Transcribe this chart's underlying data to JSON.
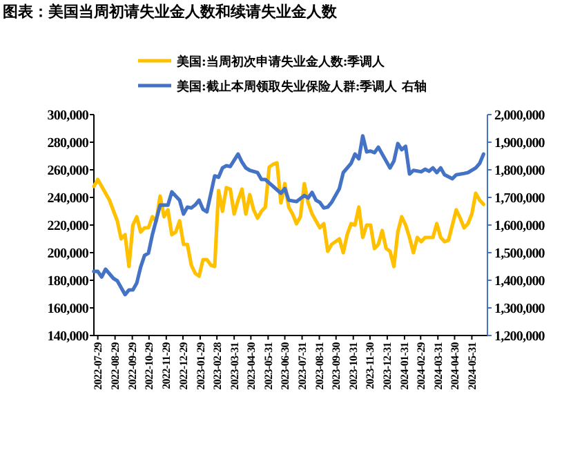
{
  "chart_data": {
    "type": "line",
    "title": "图表：美国当周初请失业金人数和续请失业金人数",
    "legend": "top",
    "xlim": [
      "2022-07-22",
      "2024-06-28"
    ],
    "xticks": [
      "2022-07-29",
      "2022-08-29",
      "2022-09-29",
      "2022-10-29",
      "2022-11-29",
      "2022-12-29",
      "2023-01-29",
      "2023-02-28",
      "2023-03-31",
      "2023-04-30",
      "2023-05-31",
      "2023-06-30",
      "2023-07-31",
      "2023-08-31",
      "2023-09-30",
      "2023-10-31",
      "2023-11-30",
      "2023-12-31",
      "2024-01-31",
      "2024-02-29",
      "2024-03-31",
      "2024-04-30",
      "2024-05-31"
    ],
    "ylim": [
      140000,
      300000
    ],
    "yticks": [
      {
        "value": 140000,
        "label": "140,000"
      },
      {
        "value": 160000,
        "label": "160,000"
      },
      {
        "value": 180000,
        "label": "180,000"
      },
      {
        "value": 200000,
        "label": "200,000"
      },
      {
        "value": 220000,
        "label": "220,000"
      },
      {
        "value": 240000,
        "label": "240,000"
      },
      {
        "value": 260000,
        "label": "260,000"
      },
      {
        "value": 280000,
        "label": "280,000"
      },
      {
        "value": 300000,
        "label": "300,000"
      }
    ],
    "y2lim": [
      1200000,
      2000000
    ],
    "y2ticks": [
      {
        "value": 1200000,
        "label": "1,200,000"
      },
      {
        "value": 1300000,
        "label": "1,300,000"
      },
      {
        "value": 1400000,
        "label": "1,400,000"
      },
      {
        "value": 1500000,
        "label": "1,500,000"
      },
      {
        "value": 1600000,
        "label": "1,600,000"
      },
      {
        "value": 1700000,
        "label": "1,700,000"
      },
      {
        "value": 1800000,
        "label": "1,800,000"
      },
      {
        "value": 1900000,
        "label": "1,900,000"
      },
      {
        "value": 2000000,
        "label": "2,000,000"
      }
    ],
    "series": [
      {
        "name": "美国:当周初次申请失业金人数:季调人",
        "color": "#ffc000",
        "x": [
          "2022-07-22",
          "2022-07-29",
          "2022-08-19",
          "2022-09-02",
          "2022-09-09",
          "2022-09-16",
          "2022-09-23",
          "2022-09-30",
          "2022-10-07",
          "2022-10-14",
          "2022-10-21",
          "2022-10-28",
          "2022-11-04",
          "2022-11-11",
          "2022-11-18",
          "2022-11-25",
          "2022-12-02",
          "2022-12-09",
          "2022-12-16",
          "2022-12-23",
          "2022-12-30",
          "2023-01-06",
          "2023-01-13",
          "2023-01-20",
          "2023-01-27",
          "2023-02-03",
          "2023-02-10",
          "2023-02-17",
          "2023-02-24",
          "2023-03-03",
          "2023-03-10",
          "2023-03-17",
          "2023-03-24",
          "2023-03-31",
          "2023-04-07",
          "2023-04-14",
          "2023-04-21",
          "2023-04-28",
          "2023-05-05",
          "2023-05-12",
          "2023-05-19",
          "2023-05-26",
          "2023-06-02",
          "2023-06-09",
          "2023-06-16",
          "2023-06-23",
          "2023-06-30",
          "2023-07-07",
          "2023-07-14",
          "2023-07-21",
          "2023-07-28",
          "2023-08-04",
          "2023-08-11",
          "2023-08-18",
          "2023-09-01",
          "2023-09-08",
          "2023-09-15",
          "2023-09-22",
          "2023-10-06",
          "2023-10-13",
          "2023-10-20",
          "2023-10-27",
          "2023-11-03",
          "2023-11-10",
          "2023-11-17",
          "2023-11-24",
          "2023-12-01",
          "2023-12-08",
          "2023-12-15",
          "2023-12-22",
          "2023-12-29",
          "2024-01-05",
          "2024-01-12",
          "2024-01-19",
          "2024-01-26",
          "2024-02-02",
          "2024-02-09",
          "2024-02-16",
          "2024-02-23",
          "2024-03-01",
          "2024-03-08",
          "2024-03-22",
          "2024-03-29",
          "2024-04-05",
          "2024-04-12",
          "2024-04-19",
          "2024-05-03",
          "2024-05-10",
          "2024-05-17",
          "2024-05-24",
          "2024-05-31",
          "2024-06-07",
          "2024-06-14",
          "2024-06-21"
        ],
        "values": [
          248000,
          253000,
          238000,
          223000,
          210000,
          213000,
          190000,
          220000,
          226000,
          215000,
          218000,
          218000,
          226000,
          223000,
          241000,
          226000,
          231000,
          213000,
          215000,
          223000,
          206000,
          206000,
          191000,
          185000,
          183000,
          195000,
          195000,
          191000,
          190000,
          245000,
          230000,
          247000,
          246000,
          228000,
          238000,
          246000,
          228000,
          242000,
          231000,
          225000,
          230000,
          233000,
          262000,
          264000,
          265000,
          236000,
          250000,
          233000,
          228000,
          221000,
          226000,
          250000,
          236000,
          228000,
          218000,
          221000,
          201000,
          206000,
          210000,
          200000,
          213000,
          221000,
          220000,
          233000,
          211000,
          220000,
          220000,
          203000,
          206000,
          216000,
          203000,
          201000,
          190000,
          215000,
          226000,
          220000,
          211000,
          200000,
          211000,
          208000,
          211000,
          211000,
          221000,
          211000,
          208000,
          209000,
          231000,
          225000,
          218000,
          221000,
          228000,
          243000,
          238000,
          235000
        ]
      },
      {
        "name": "美国:截止本周领取失业保险人群:季调人 右轴",
        "color": "#4472c4",
        "axis": "y2",
        "x": [
          "2022-07-22",
          "2022-07-29",
          "2022-08-05",
          "2022-08-12",
          "2022-08-26",
          "2022-09-02",
          "2022-09-09",
          "2022-09-16",
          "2022-09-23",
          "2022-09-30",
          "2022-10-07",
          "2022-10-14",
          "2022-10-21",
          "2022-10-28",
          "2022-11-04",
          "2022-11-18",
          "2022-12-02",
          "2022-12-09",
          "2022-12-23",
          "2022-12-30",
          "2023-01-06",
          "2023-01-13",
          "2023-01-20",
          "2023-01-27",
          "2023-02-03",
          "2023-02-10",
          "2023-02-24",
          "2023-03-03",
          "2023-03-10",
          "2023-03-17",
          "2023-03-24",
          "2023-04-07",
          "2023-04-14",
          "2023-04-21",
          "2023-04-28",
          "2023-05-12",
          "2023-05-19",
          "2023-05-26",
          "2023-06-09",
          "2023-06-23",
          "2023-06-30",
          "2023-07-07",
          "2023-07-21",
          "2023-08-04",
          "2023-08-11",
          "2023-08-18",
          "2023-08-25",
          "2023-09-01",
          "2023-09-08",
          "2023-09-15",
          "2023-09-22",
          "2023-10-06",
          "2023-10-13",
          "2023-10-27",
          "2023-11-03",
          "2023-11-10",
          "2023-11-17",
          "2023-11-24",
          "2023-12-01",
          "2023-12-08",
          "2023-12-15",
          "2023-12-22",
          "2024-01-05",
          "2024-01-12",
          "2024-01-19",
          "2024-01-26",
          "2024-02-02",
          "2024-02-09",
          "2024-02-16",
          "2024-03-01",
          "2024-03-08",
          "2024-03-15",
          "2024-03-22",
          "2024-03-29",
          "2024-04-05",
          "2024-04-12",
          "2024-04-26",
          "2024-05-03",
          "2024-05-17",
          "2024-05-24",
          "2024-06-07",
          "2024-06-14",
          "2024-06-21"
        ],
        "values": [
          1432000,
          1432000,
          1412000,
          1440000,
          1407000,
          1398000,
          1373000,
          1348000,
          1365000,
          1365000,
          1390000,
          1448000,
          1490000,
          1498000,
          1565000,
          1672000,
          1672000,
          1720000,
          1690000,
          1640000,
          1665000,
          1662000,
          1673000,
          1690000,
          1657000,
          1648000,
          1778000,
          1773000,
          1807000,
          1815000,
          1812000,
          1857000,
          1828000,
          1807000,
          1798000,
          1790000,
          1765000,
          1765000,
          1740000,
          1715000,
          1732000,
          1690000,
          1685000,
          1707000,
          1698000,
          1718000,
          1690000,
          1682000,
          1662000,
          1665000,
          1682000,
          1732000,
          1790000,
          1823000,
          1857000,
          1840000,
          1923000,
          1865000,
          1868000,
          1862000,
          1882000,
          1857000,
          1807000,
          1832000,
          1895000,
          1873000,
          1885000,
          1785000,
          1798000,
          1793000,
          1802000,
          1795000,
          1807000,
          1790000,
          1807000,
          1782000,
          1768000,
          1782000,
          1787000,
          1790000,
          1807000,
          1823000,
          1857000
        ]
      }
    ]
  }
}
